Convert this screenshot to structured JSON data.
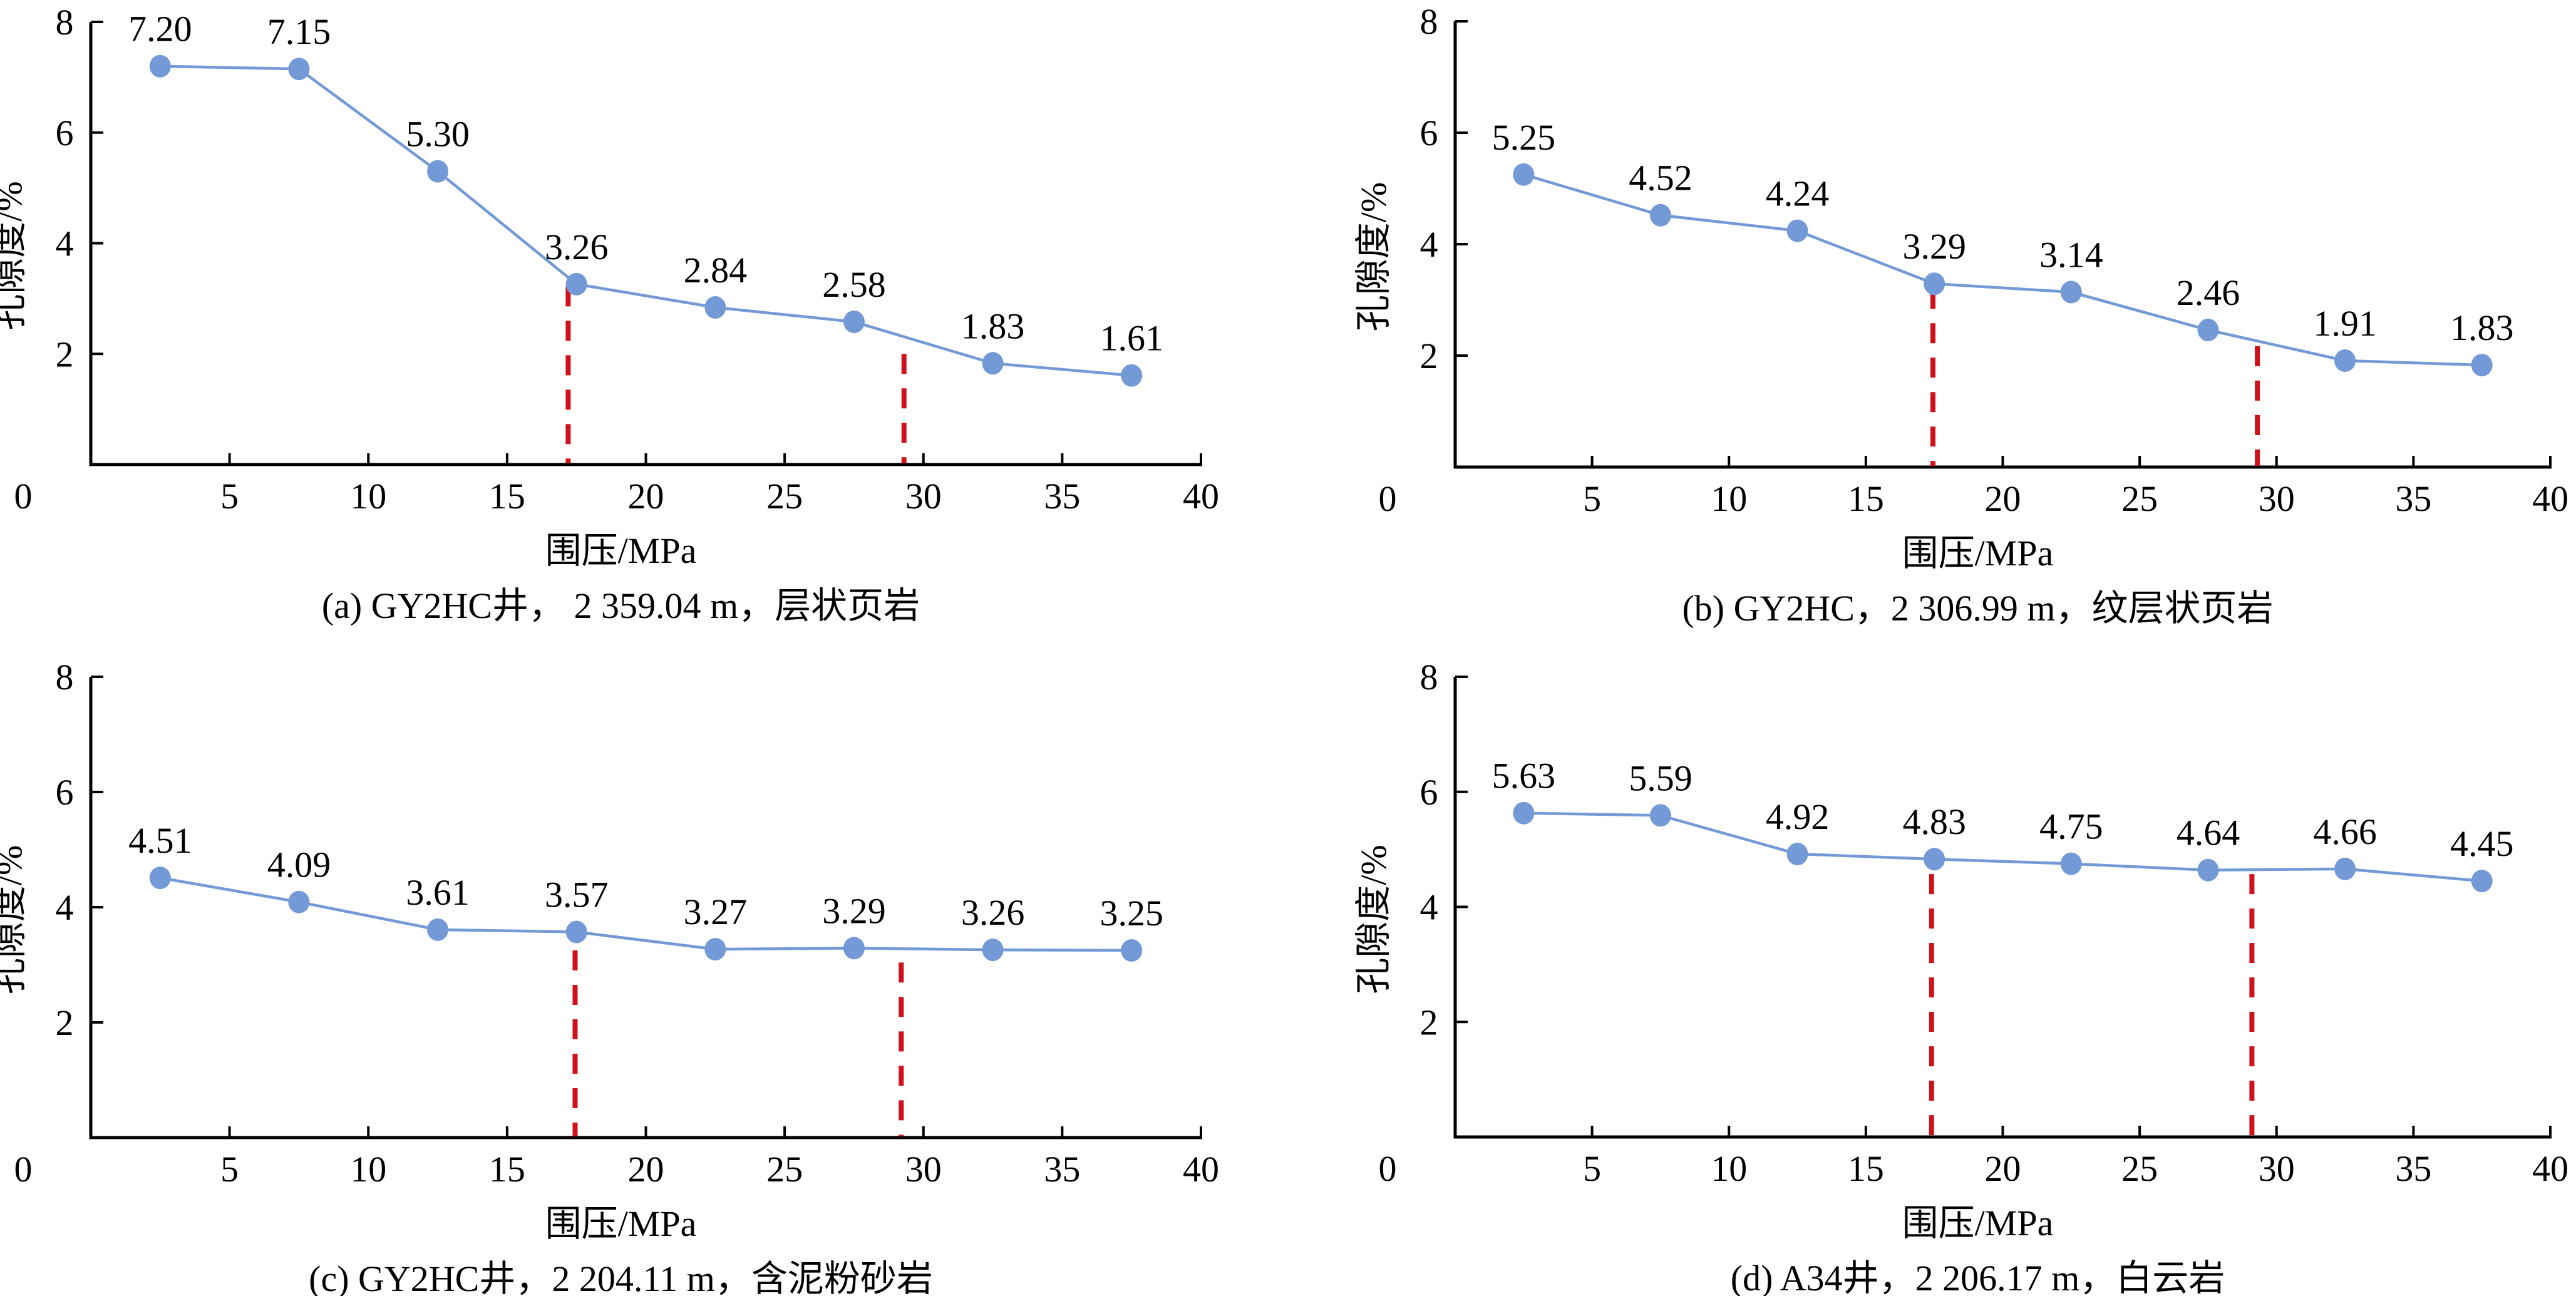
{
  "figure": {
    "series_color": "#7399d6",
    "marker_color": "#7399d6",
    "threshold_color": "#d0101a",
    "axis_color": "#000000"
  },
  "chart_data": [
    {
      "id": "a",
      "type": "line",
      "caption": "(a) GY2HC井， 2 359.04 m，层状页岩",
      "xlabel": "围压/MPa",
      "ylabel": "孔隙度/%",
      "xlim": [
        0,
        40
      ],
      "ylim": [
        0,
        8
      ],
      "xticks": [
        "0",
        "5",
        "10",
        "15",
        "20",
        "25",
        "30",
        "35",
        "40"
      ],
      "yticks": [
        "2",
        "4",
        "6",
        "8"
      ],
      "x": [
        2.5,
        7.5,
        12.5,
        17.5,
        22.5,
        27.5,
        32.5,
        37.5
      ],
      "values": [
        7.2,
        7.15,
        5.3,
        3.26,
        2.84,
        2.58,
        1.83,
        1.61
      ],
      "labels": [
        "7.20",
        "7.15",
        "5.30",
        "3.26",
        "2.84",
        "2.58",
        "1.83",
        "1.61"
      ],
      "thresholds": [
        {
          "x": 17.2,
          "top": 3.22
        },
        {
          "x": 29.3,
          "top": 2.0
        }
      ]
    },
    {
      "id": "b",
      "type": "line",
      "caption": "(b) GY2HC，2 306.99 m，纹层状页岩",
      "xlabel": "围压/MPa",
      "ylabel": "孔隙度/%",
      "xlim": [
        0,
        40
      ],
      "ylim": [
        0,
        8
      ],
      "xticks": [
        "0",
        "5",
        "10",
        "15",
        "20",
        "25",
        "30",
        "35",
        "40"
      ],
      "yticks": [
        "2",
        "4",
        "6",
        "8"
      ],
      "x": [
        2.5,
        7.5,
        12.5,
        17.5,
        22.5,
        27.5,
        32.5,
        37.5
      ],
      "values": [
        5.25,
        4.52,
        4.24,
        3.29,
        3.14,
        2.46,
        1.91,
        1.83
      ],
      "labels": [
        "5.25",
        "4.52",
        "4.24",
        "3.29",
        "3.14",
        "2.46",
        "1.91",
        "1.83"
      ],
      "thresholds": [
        {
          "x": 17.45,
          "top": 3.2
        },
        {
          "x": 29.3,
          "top": 2.17
        }
      ]
    },
    {
      "id": "c",
      "type": "line",
      "caption": "(c) GY2HC井，2 204.11 m，含泥粉砂岩",
      "xlabel": "围压/MPa",
      "ylabel": "孔隙度/%",
      "xlim": [
        0,
        40
      ],
      "ylim": [
        0,
        8
      ],
      "xticks": [
        "0",
        "5",
        "10",
        "15",
        "20",
        "25",
        "30",
        "35",
        "40"
      ],
      "yticks": [
        "2",
        "4",
        "6",
        "8"
      ],
      "x": [
        2.5,
        7.5,
        12.5,
        17.5,
        22.5,
        27.5,
        32.5,
        37.5
      ],
      "values": [
        4.51,
        4.09,
        3.61,
        3.57,
        3.27,
        3.29,
        3.26,
        3.25
      ],
      "labels": [
        "4.51",
        "4.09",
        "3.61",
        "3.57",
        "3.27",
        "3.29",
        "3.26",
        "3.25"
      ],
      "thresholds": [
        {
          "x": 17.45,
          "top": 3.25
        },
        {
          "x": 29.2,
          "top": 3.04
        }
      ]
    },
    {
      "id": "d",
      "type": "line",
      "caption": "(d) A34井，2 206.17 m，白云岩",
      "xlabel": "围压/MPa",
      "ylabel": "孔隙度/%",
      "xlim": [
        0,
        40
      ],
      "ylim": [
        0,
        8
      ],
      "xticks": [
        "0",
        "5",
        "10",
        "15",
        "20",
        "25",
        "30",
        "35",
        "40"
      ],
      "yticks": [
        "2",
        "4",
        "6",
        "8"
      ],
      "x": [
        2.5,
        7.5,
        12.5,
        17.5,
        22.5,
        27.5,
        32.5,
        37.5
      ],
      "values": [
        5.63,
        5.59,
        4.92,
        4.83,
        4.75,
        4.64,
        4.66,
        4.45
      ],
      "labels": [
        "5.63",
        "5.59",
        "4.92",
        "4.83",
        "4.75",
        "4.64",
        "4.66",
        "4.45"
      ],
      "thresholds": [
        {
          "x": 17.4,
          "top": 4.57
        },
        {
          "x": 29.1,
          "top": 4.57
        }
      ]
    }
  ]
}
